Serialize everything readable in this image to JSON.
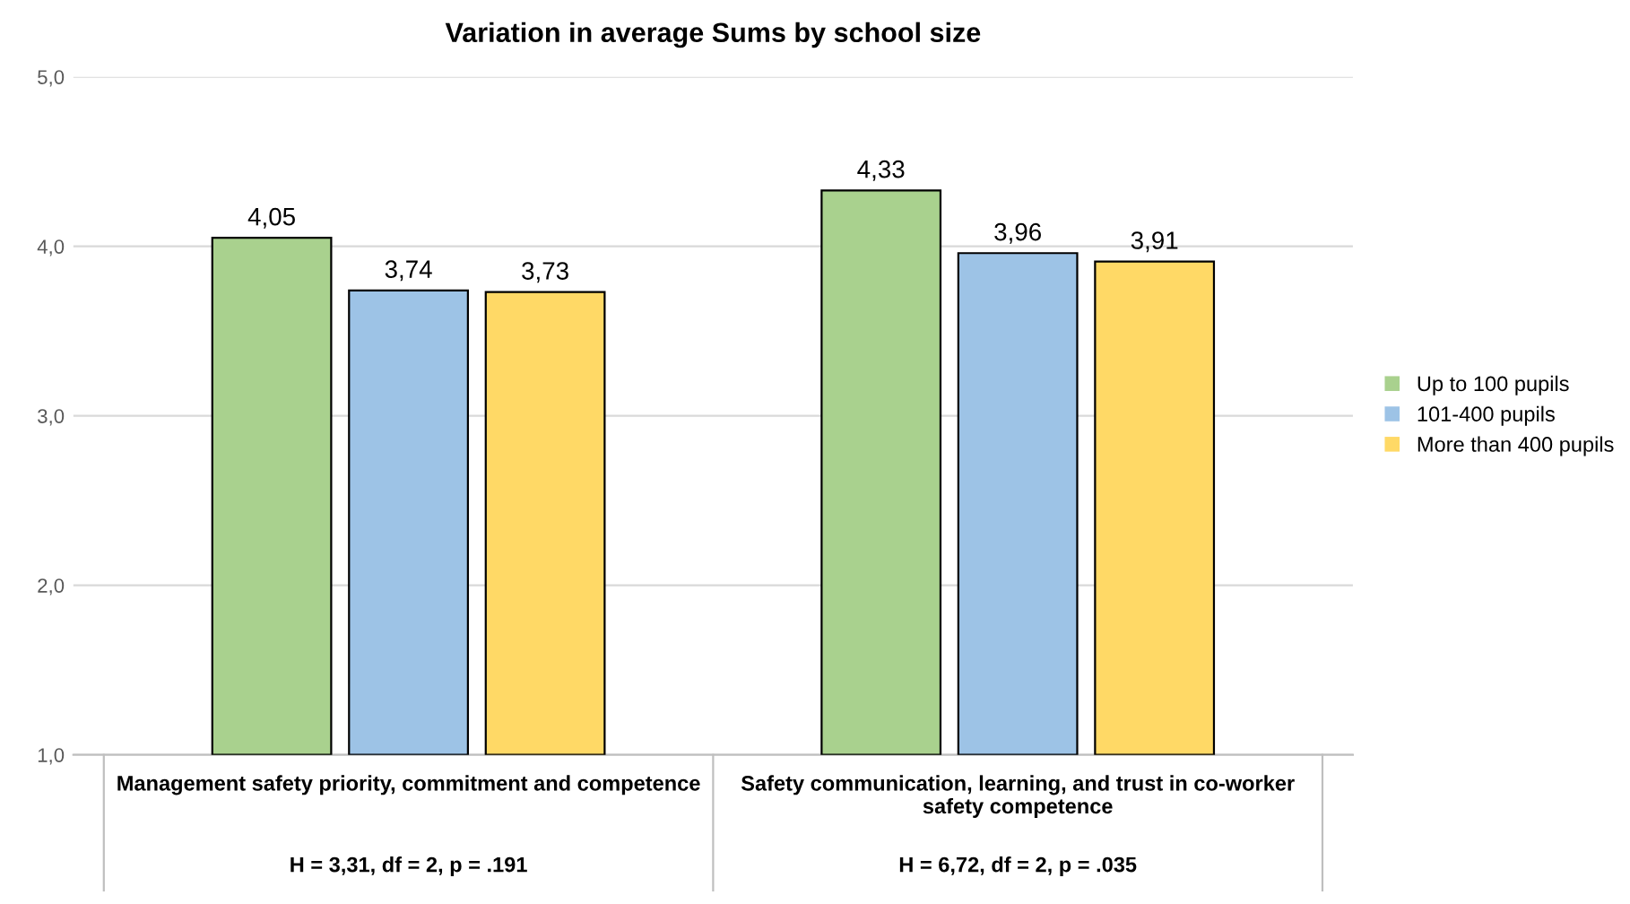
{
  "chart_data": {
    "type": "bar",
    "title": "Variation in average Sums by school size",
    "categories": [
      "Management safety priority, commitment and competence",
      "Safety communication, learning, and trust in co-worker safety competence"
    ],
    "series": [
      {
        "name": "Up to 100 pupils",
        "color": "#a9d18e",
        "values": [
          4.05,
          4.33
        ],
        "value_labels": [
          "4,05",
          "4,33"
        ]
      },
      {
        "name": "101-400 pupils",
        "color": "#9dc3e6",
        "values": [
          3.74,
          3.96
        ],
        "value_labels": [
          "3,74",
          "3,96"
        ]
      },
      {
        "name": "More than 400 pupils",
        "color": "#ffd966",
        "values": [
          3.73,
          3.91
        ],
        "value_labels": [
          "3,73",
          "3,91"
        ]
      }
    ],
    "ylim": [
      1,
      5
    ],
    "yticks": [
      {
        "value": 1,
        "label": "1,0"
      },
      {
        "value": 2,
        "label": "2,0"
      },
      {
        "value": 3,
        "label": "3,0"
      },
      {
        "value": 4,
        "label": "4,0"
      },
      {
        "value": 5,
        "label": "5,0"
      }
    ],
    "grid": "y",
    "legend": "right",
    "annotations": [
      "H = 3,31, df = 2, p = .191",
      "H = 6,72, df = 2, p = .035"
    ]
  }
}
